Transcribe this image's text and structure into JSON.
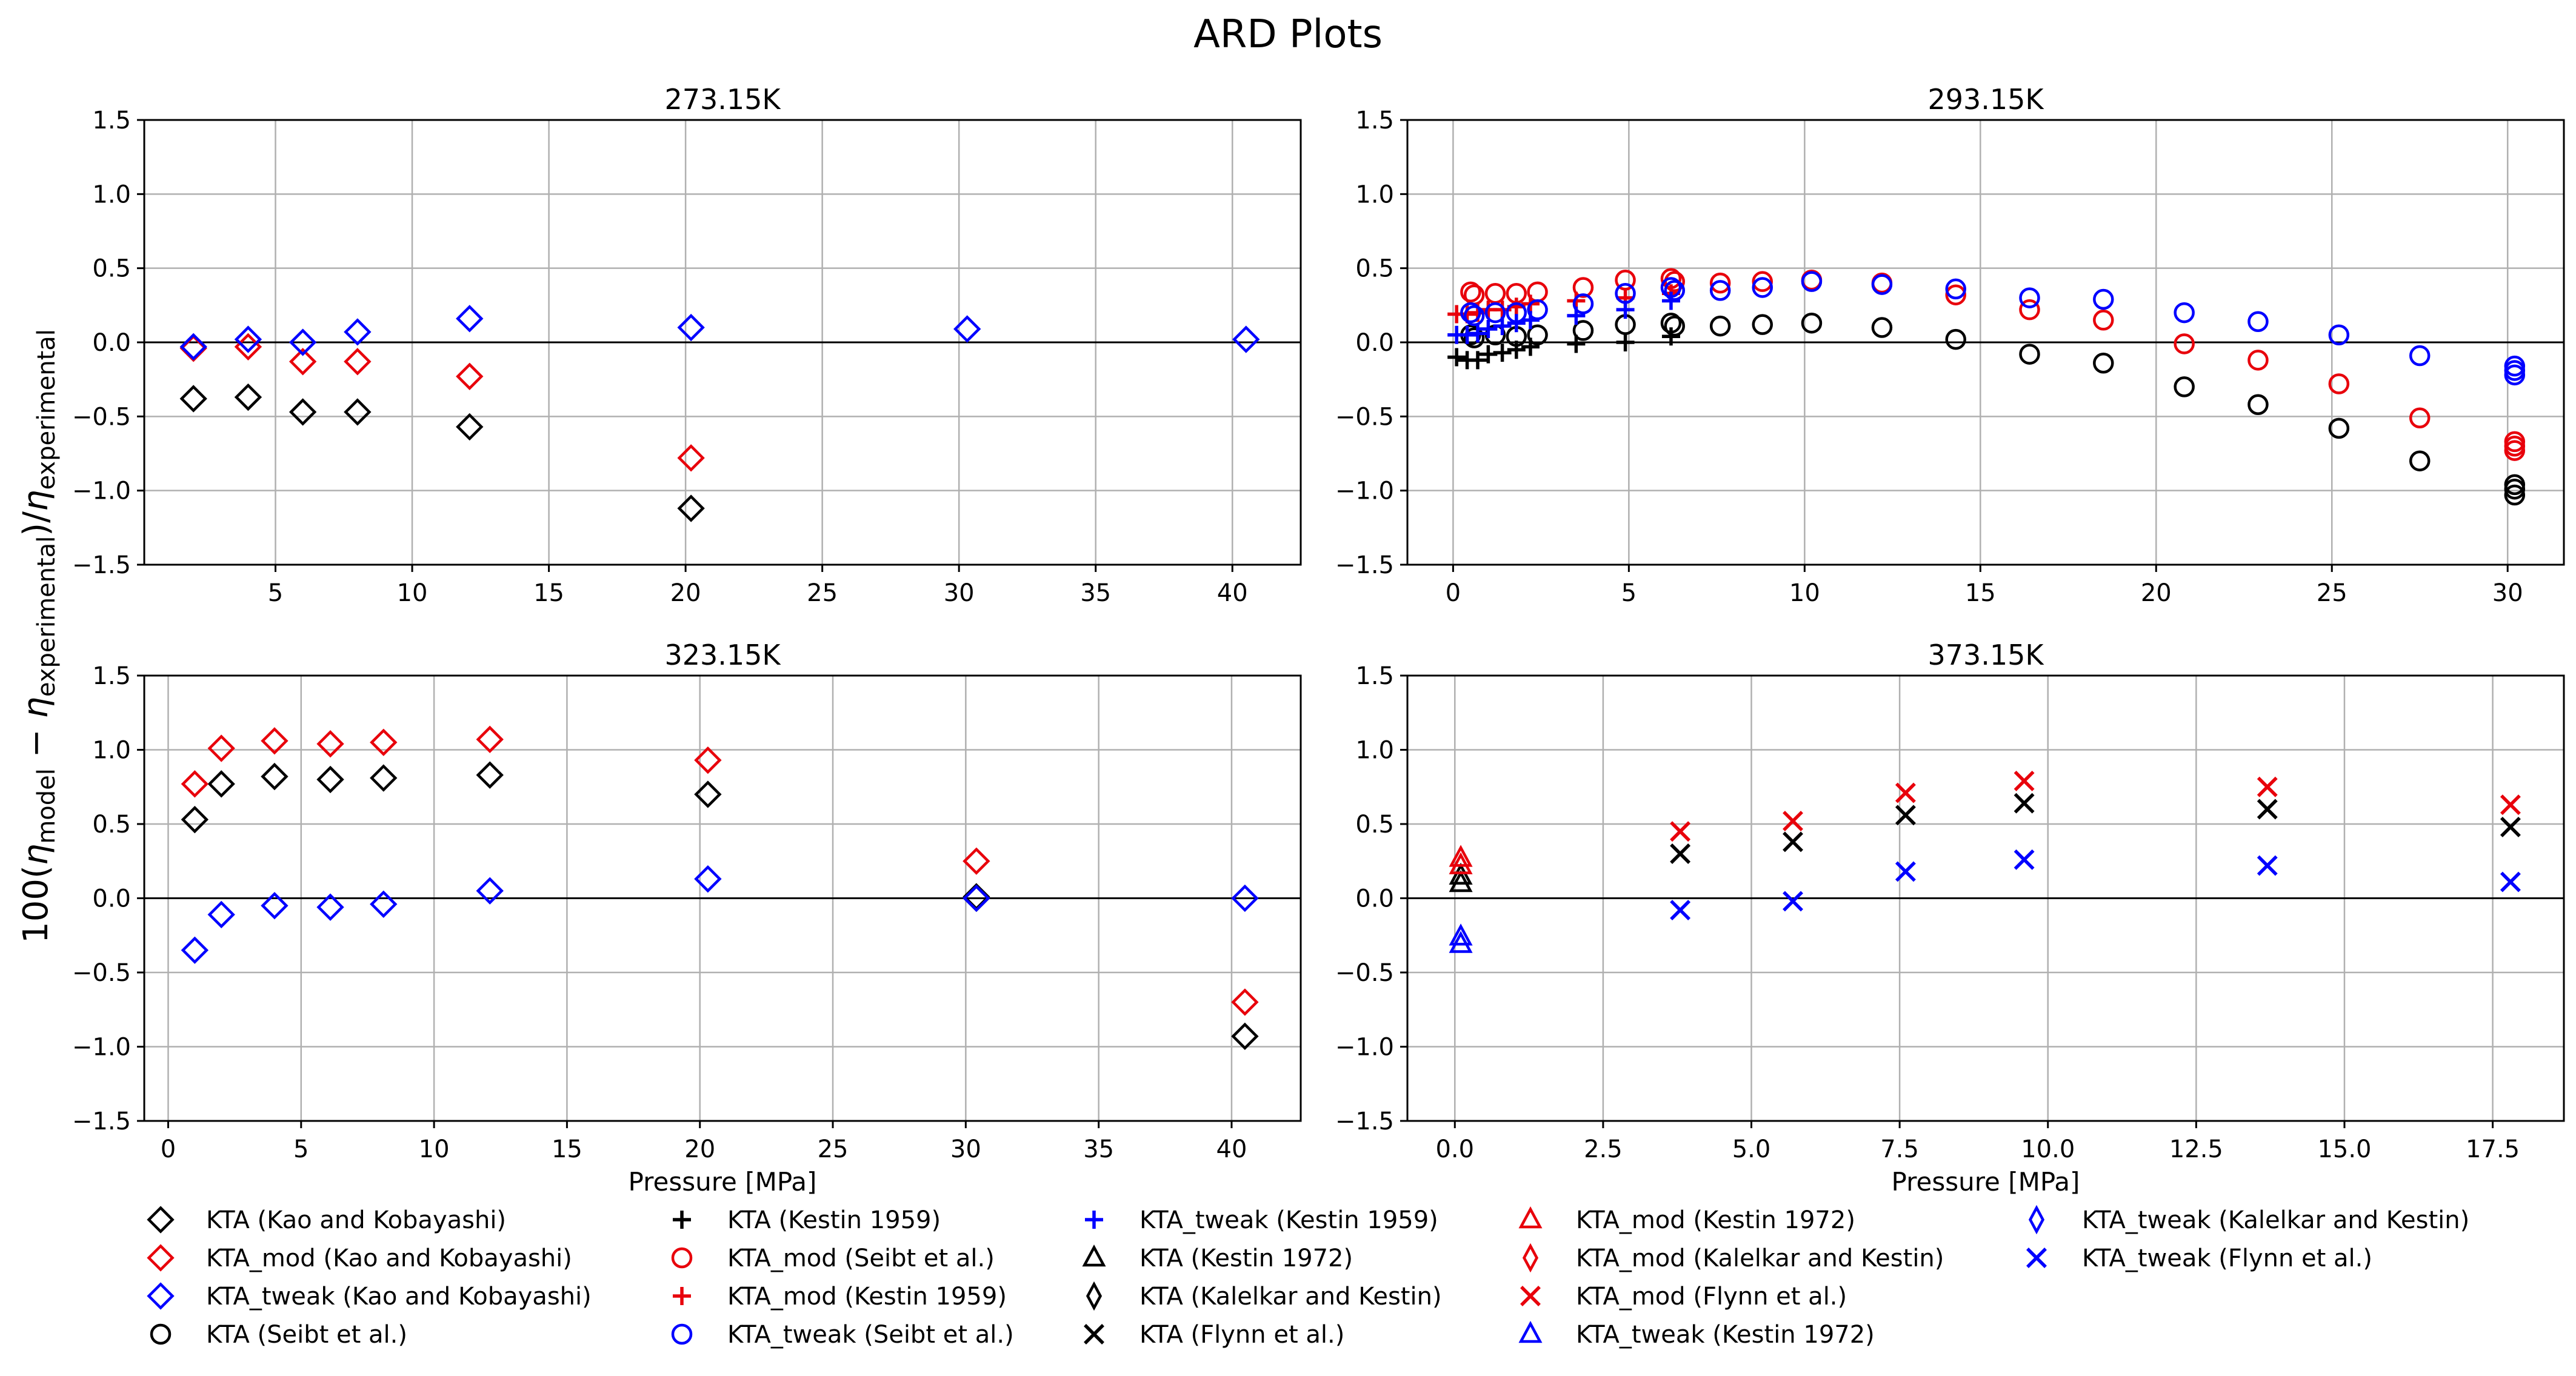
{
  "figure": {
    "title": "ARD Plots",
    "ylabel": "100(η_model − η_experimental)/η_experimental"
  },
  "legend": [
    {
      "label": "KTA (Kao and Kobayashi)",
      "marker": "diamond",
      "color": "#000000"
    },
    {
      "label": "KTA_mod (Kao and Kobayashi)",
      "marker": "diamond",
      "color": "#e8000b"
    },
    {
      "label": "KTA_tweak (Kao and Kobayashi)",
      "marker": "diamond",
      "color": "#0000ff"
    },
    {
      "label": "KTA (Seibt et al.)",
      "marker": "circle",
      "color": "#000000"
    },
    {
      "label": "KTA (Kestin 1959)",
      "marker": "plus",
      "color": "#000000"
    },
    {
      "label": "KTA_mod (Seibt et al.)",
      "marker": "circle",
      "color": "#e8000b"
    },
    {
      "label": "KTA_mod (Kestin 1959)",
      "marker": "plus",
      "color": "#e8000b"
    },
    {
      "label": "KTA_tweak (Seibt et al.)",
      "marker": "circle",
      "color": "#0000ff"
    },
    {
      "label": "KTA_tweak (Kestin 1959)",
      "marker": "plus",
      "color": "#0000ff"
    },
    {
      "label": "KTA (Kestin 1972)",
      "marker": "triangle",
      "color": "#000000"
    },
    {
      "label": "KTA (Kalelkar and Kestin)",
      "marker": "thin_diamond",
      "color": "#000000"
    },
    {
      "label": "KTA (Flynn et al.)",
      "marker": "x",
      "color": "#000000"
    },
    {
      "label": "KTA_mod (Kestin 1972)",
      "marker": "triangle",
      "color": "#e8000b"
    },
    {
      "label": "KTA_mod (Kalelkar and Kestin)",
      "marker": "thin_diamond",
      "color": "#e8000b"
    },
    {
      "label": "KTA_mod (Flynn et al.)",
      "marker": "x",
      "color": "#e8000b"
    },
    {
      "label": "KTA_tweak (Kestin 1972)",
      "marker": "triangle",
      "color": "#0000ff"
    },
    {
      "label": "KTA_tweak (Kalelkar and Kestin)",
      "marker": "thin_diamond",
      "color": "#0000ff"
    },
    {
      "label": "KTA_tweak (Flynn et al.)",
      "marker": "x",
      "color": "#0000ff"
    }
  ],
  "chart_data": [
    {
      "type": "scatter",
      "title": "273.15K",
      "xlabel": "",
      "ylabel": "",
      "xlim": [
        0.2,
        42.5
      ],
      "ylim": [
        -1.5,
        1.5
      ],
      "xticks": [
        5,
        10,
        15,
        20,
        25,
        30,
        35,
        40
      ],
      "xtick_labels": [
        "5",
        "10",
        "15",
        "20",
        "25",
        "30",
        "35",
        "40"
      ],
      "yticks": [
        -1.5,
        -1.0,
        -0.5,
        0.0,
        0.5,
        1.0,
        1.5
      ],
      "ytick_labels": [
        "−1.5",
        "−1.0",
        "−0.5",
        "0.0",
        "0.5",
        "1.0",
        "1.5"
      ],
      "grid": true,
      "series": [
        {
          "name": "KTA (Kao and Kobayashi)",
          "marker": "diamond",
          "color": "#000000",
          "x": [
            2.0,
            4.0,
            6.0,
            8.0,
            12.1,
            20.2
          ],
          "y": [
            -0.38,
            -0.37,
            -0.47,
            -0.47,
            -0.57,
            -1.12
          ]
        },
        {
          "name": "KTA_mod (Kao and Kobayashi)",
          "marker": "diamond",
          "color": "#e8000b",
          "x": [
            2.0,
            4.0,
            6.0,
            8.0,
            12.1,
            20.2
          ],
          "y": [
            -0.04,
            -0.03,
            -0.13,
            -0.13,
            -0.23,
            -0.78
          ]
        },
        {
          "name": "KTA_tweak (Kao and Kobayashi)",
          "marker": "diamond",
          "color": "#0000ff",
          "x": [
            2.0,
            4.0,
            6.0,
            8.0,
            12.1,
            20.2,
            30.3,
            40.5
          ],
          "y": [
            -0.03,
            0.02,
            0.0,
            0.07,
            0.16,
            0.1,
            0.09,
            0.02
          ]
        }
      ]
    },
    {
      "type": "scatter",
      "title": "293.15K",
      "xlabel": "",
      "ylabel": "",
      "xlim": [
        -1.3,
        31.6
      ],
      "ylim": [
        -1.5,
        1.5
      ],
      "xticks": [
        0,
        5,
        10,
        15,
        20,
        25,
        30
      ],
      "xtick_labels": [
        "0",
        "5",
        "10",
        "15",
        "20",
        "25",
        "30"
      ],
      "yticks": [
        -1.5,
        -1.0,
        -0.5,
        0.0,
        0.5,
        1.0,
        1.5
      ],
      "ytick_labels": [
        "−1.5",
        "−1.0",
        "−0.5",
        "0.0",
        "0.5",
        "1.0",
        "1.5"
      ],
      "grid": true,
      "series": [
        {
          "name": "KTA (Seibt et al.)",
          "marker": "circle",
          "color": "#000000",
          "x": [
            0.5,
            0.6,
            1.2,
            1.8,
            2.4,
            3.7,
            4.9,
            6.2,
            6.3,
            7.6,
            8.8,
            10.2,
            12.2,
            14.3,
            16.4,
            18.5,
            20.8,
            22.9,
            25.2,
            27.5,
            30.2,
            30.2,
            30.2
          ],
          "y": [
            0.05,
            0.03,
            0.05,
            0.04,
            0.05,
            0.08,
            0.12,
            0.13,
            0.11,
            0.11,
            0.12,
            0.13,
            0.1,
            0.02,
            -0.08,
            -0.14,
            -0.3,
            -0.42,
            -0.58,
            -0.8,
            -0.96,
            -0.99,
            -1.03
          ]
        },
        {
          "name": "KTA (Kestin 1959)",
          "marker": "plus",
          "color": "#000000",
          "x": [
            0.1,
            0.4,
            0.7,
            1.0,
            1.4,
            1.8,
            2.2,
            3.5,
            4.9,
            6.2
          ],
          "y": [
            -0.1,
            -0.12,
            -0.12,
            -0.08,
            -0.07,
            -0.05,
            -0.03,
            -0.01,
            0.0,
            0.04
          ]
        },
        {
          "name": "KTA_mod (Seibt et al.)",
          "marker": "circle",
          "color": "#e8000b",
          "x": [
            0.5,
            0.6,
            1.2,
            1.8,
            2.4,
            3.7,
            4.9,
            6.2,
            6.3,
            7.6,
            8.8,
            10.2,
            12.2,
            14.3,
            16.4,
            18.5,
            20.8,
            22.9,
            25.2,
            27.5,
            30.2,
            30.2,
            30.2
          ],
          "y": [
            0.34,
            0.32,
            0.33,
            0.33,
            0.34,
            0.37,
            0.42,
            0.43,
            0.41,
            0.4,
            0.41,
            0.42,
            0.4,
            0.32,
            0.22,
            0.15,
            -0.01,
            -0.12,
            -0.28,
            -0.51,
            -0.67,
            -0.7,
            -0.73
          ]
        },
        {
          "name": "KTA_mod (Kestin 1959)",
          "marker": "plus",
          "color": "#e8000b",
          "x": [
            0.1,
            0.4,
            0.7,
            1.0,
            1.4,
            1.8,
            2.2,
            3.5,
            4.9,
            6.2
          ],
          "y": [
            0.19,
            0.19,
            0.2,
            0.22,
            0.22,
            0.24,
            0.26,
            0.28,
            0.3,
            0.33
          ]
        },
        {
          "name": "KTA_tweak (Seibt et al.)",
          "marker": "circle",
          "color": "#0000ff",
          "x": [
            0.5,
            0.6,
            1.2,
            1.8,
            2.4,
            3.7,
            4.9,
            6.2,
            6.3,
            7.6,
            8.8,
            10.2,
            12.2,
            14.3,
            16.4,
            18.5,
            20.8,
            22.9,
            25.2,
            27.5,
            30.2,
            30.2,
            30.2
          ],
          "y": [
            0.2,
            0.18,
            0.2,
            0.2,
            0.22,
            0.26,
            0.33,
            0.37,
            0.35,
            0.35,
            0.37,
            0.41,
            0.39,
            0.36,
            0.3,
            0.29,
            0.2,
            0.14,
            0.05,
            -0.09,
            -0.16,
            -0.19,
            -0.22
          ]
        },
        {
          "name": "KTA_tweak (Kestin 1959)",
          "marker": "plus",
          "color": "#0000ff",
          "x": [
            0.1,
            0.4,
            0.7,
            1.0,
            1.4,
            1.8,
            2.2,
            3.5,
            4.9,
            6.2
          ],
          "y": [
            0.05,
            0.05,
            0.06,
            0.09,
            0.11,
            0.13,
            0.15,
            0.18,
            0.22,
            0.28
          ]
        }
      ]
    },
    {
      "type": "scatter",
      "title": "323.15K",
      "xlabel": "Pressure [MPa]",
      "ylabel": "",
      "xlim": [
        -0.9,
        42.6
      ],
      "ylim": [
        -1.5,
        1.5
      ],
      "xticks": [
        0,
        5,
        10,
        15,
        20,
        25,
        30,
        35,
        40
      ],
      "xtick_labels": [
        "0",
        "5",
        "10",
        "15",
        "20",
        "25",
        "30",
        "35",
        "40"
      ],
      "yticks": [
        -1.5,
        -1.0,
        -0.5,
        0.0,
        0.5,
        1.0,
        1.5
      ],
      "ytick_labels": [
        "−1.5",
        "−1.0",
        "−0.5",
        "0.0",
        "0.5",
        "1.0",
        "1.5"
      ],
      "grid": true,
      "series": [
        {
          "name": "KTA (Kao and Kobayashi)",
          "marker": "diamond",
          "color": "#000000",
          "x": [
            1.0,
            2.0,
            4.0,
            6.1,
            8.1,
            12.1,
            20.3,
            30.4,
            30.4,
            40.5
          ],
          "y": [
            0.53,
            0.77,
            0.82,
            0.8,
            0.81,
            0.83,
            0.7,
            0.01,
            0.0,
            -0.93
          ]
        },
        {
          "name": "KTA_mod (Kao and Kobayashi)",
          "marker": "diamond",
          "color": "#e8000b",
          "x": [
            1.0,
            2.0,
            4.0,
            6.1,
            8.1,
            12.1,
            20.3,
            30.4,
            40.5
          ],
          "y": [
            0.77,
            1.01,
            1.06,
            1.04,
            1.05,
            1.07,
            0.93,
            0.25,
            -0.7
          ]
        },
        {
          "name": "KTA_tweak (Kao and Kobayashi)",
          "marker": "diamond",
          "color": "#0000ff",
          "x": [
            1.0,
            2.0,
            4.0,
            6.1,
            8.1,
            12.1,
            20.3,
            30.4,
            40.5
          ],
          "y": [
            -0.35,
            -0.11,
            -0.05,
            -0.06,
            -0.04,
            0.05,
            0.13,
            0.0,
            0.0
          ]
        }
      ]
    },
    {
      "type": "scatter",
      "title": "373.15K",
      "xlabel": "Pressure [MPa]",
      "ylabel": "",
      "xlim": [
        -0.8,
        18.7
      ],
      "ylim": [
        -1.5,
        1.5
      ],
      "xticks": [
        0.0,
        2.5,
        5.0,
        7.5,
        10.0,
        12.5,
        15.0,
        17.5
      ],
      "xtick_labels": [
        "0.0",
        "2.5",
        "5.0",
        "7.5",
        "10.0",
        "12.5",
        "15.0",
        "17.5"
      ],
      "yticks": [
        -1.5,
        -1.0,
        -0.5,
        0.0,
        0.5,
        1.0,
        1.5
      ],
      "ytick_labels": [
        "−1.5",
        "−1.0",
        "−0.5",
        "0.0",
        "0.5",
        "1.0",
        "1.5"
      ],
      "grid": true,
      "series": [
        {
          "name": "KTA (Kestin 1972)",
          "marker": "triangle",
          "color": "#000000",
          "x": [
            0.1,
            0.1
          ],
          "y": [
            0.1,
            0.15
          ]
        },
        {
          "name": "KTA_mod (Kestin 1972)",
          "marker": "triangle",
          "color": "#e8000b",
          "x": [
            0.1,
            0.1
          ],
          "y": [
            0.22,
            0.27
          ]
        },
        {
          "name": "KTA_tweak (Kestin 1972)",
          "marker": "triangle",
          "color": "#0000ff",
          "x": [
            0.1,
            0.1
          ],
          "y": [
            -0.26,
            -0.31
          ]
        },
        {
          "name": "KTA (Flynn et al.)",
          "marker": "x",
          "color": "#000000",
          "x": [
            3.8,
            5.7,
            7.6,
            9.6,
            13.7,
            17.8
          ],
          "y": [
            0.3,
            0.38,
            0.56,
            0.64,
            0.6,
            0.48
          ]
        },
        {
          "name": "KTA_mod (Flynn et al.)",
          "marker": "x",
          "color": "#e8000b",
          "x": [
            3.8,
            5.7,
            7.6,
            9.6,
            13.7,
            17.8
          ],
          "y": [
            0.45,
            0.52,
            0.71,
            0.79,
            0.75,
            0.63
          ]
        },
        {
          "name": "KTA_tweak (Flynn et al.)",
          "marker": "x",
          "color": "#0000ff",
          "x": [
            3.8,
            5.7,
            7.6,
            9.6,
            13.7,
            17.8
          ],
          "y": [
            -0.08,
            -0.02,
            0.18,
            0.26,
            0.22,
            0.11
          ]
        }
      ]
    }
  ]
}
